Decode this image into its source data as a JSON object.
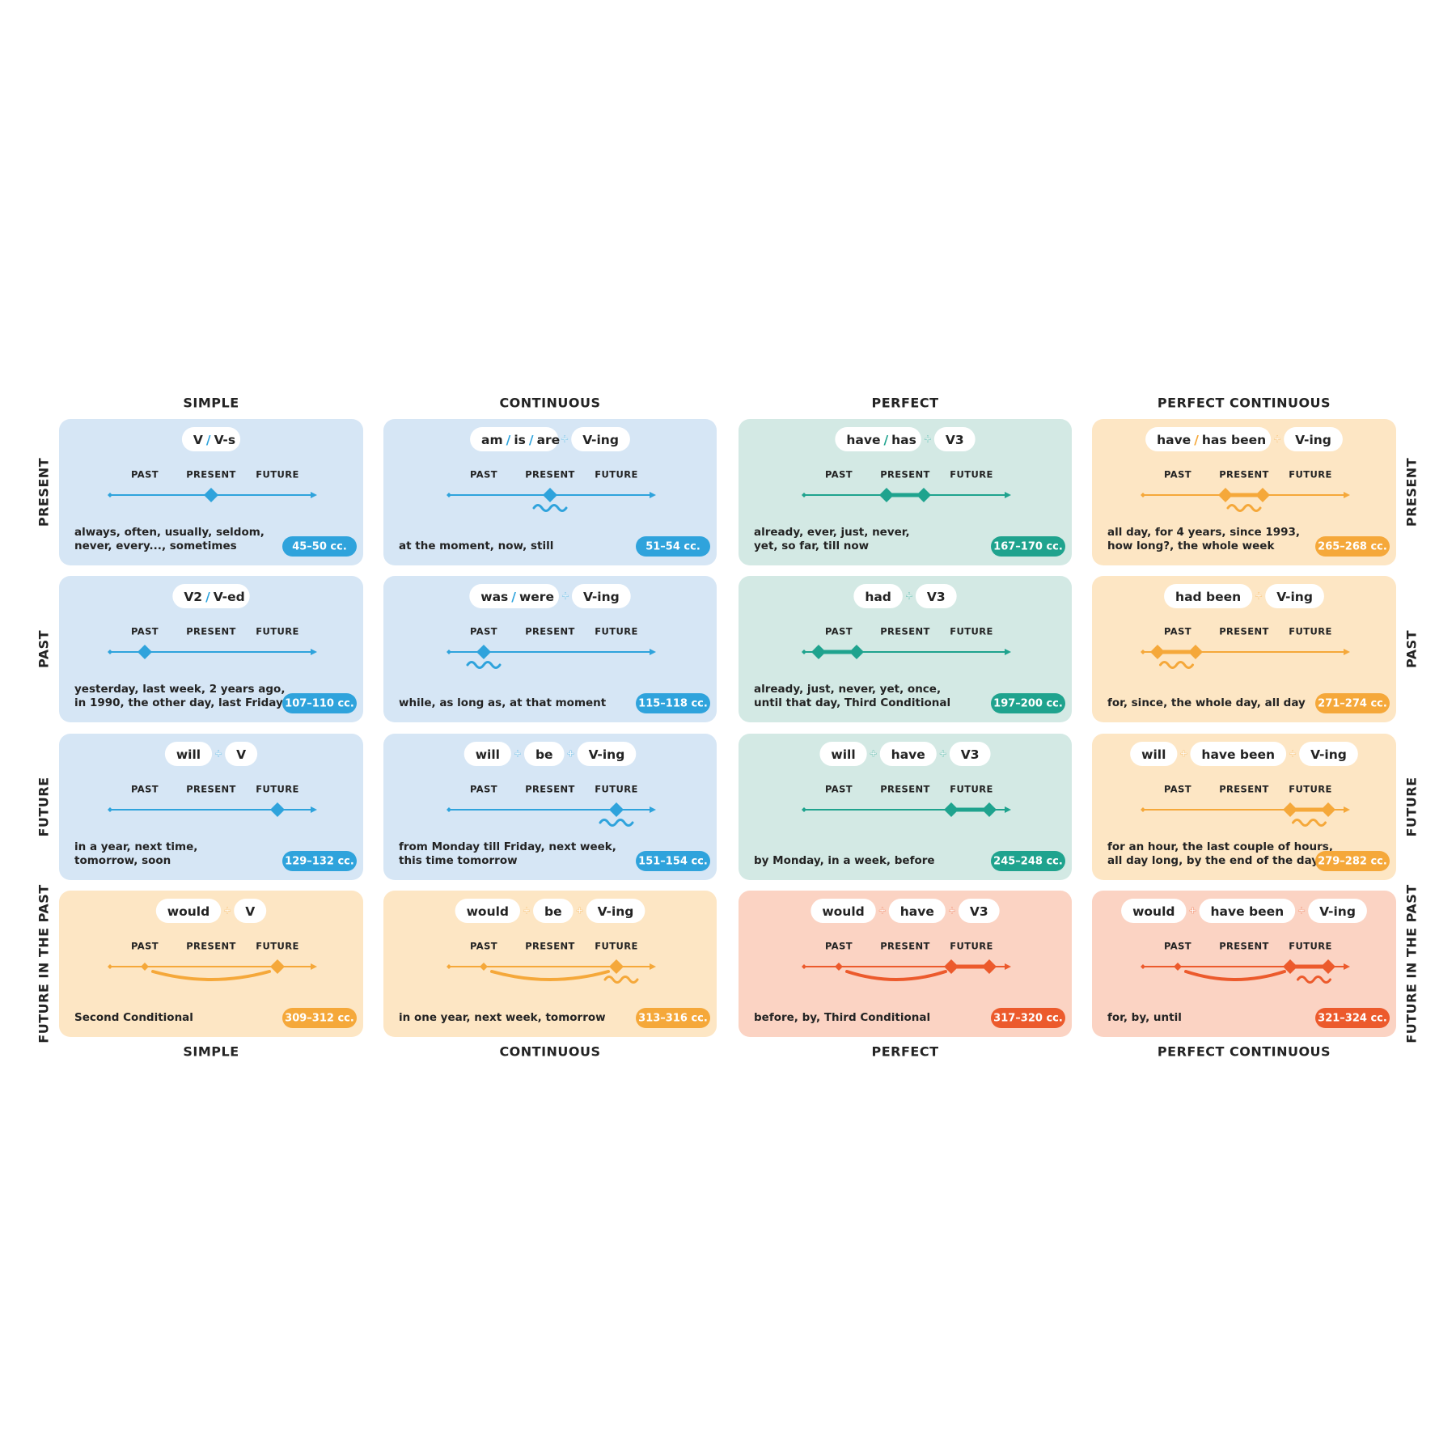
{
  "columns": [
    "SIMPLE",
    "CONTINUOUS",
    "PERFECT",
    "PERFECT CONTINUOUS"
  ],
  "rows": [
    "PRESENT",
    "PAST",
    "FUTURE",
    "FUTURE IN THE PAST"
  ],
  "timeline": [
    "PAST",
    "PRESENT",
    "FUTURE"
  ],
  "separator": "/",
  "joiner": "+",
  "cards": [
    [
      {
        "formula": [
          [
            "V",
            "V-s"
          ]
        ],
        "usage": [
          "always, often, usually, seldom,",
          "never, every..., sometimes"
        ],
        "pages": "45–50 cc."
      },
      {
        "formula": [
          [
            "am",
            "is",
            "are"
          ],
          [
            "V-ing"
          ]
        ],
        "usage": [
          "at the moment, now, still"
        ],
        "pages": "51–54 cc."
      },
      {
        "formula": [
          [
            "have",
            "has"
          ],
          [
            "V3"
          ]
        ],
        "usage": [
          "already, ever, just, never,",
          "yet, so far, till now"
        ],
        "pages": "167–170 cc."
      },
      {
        "formula": [
          [
            "have",
            "has been"
          ],
          [
            "V-ing"
          ]
        ],
        "usage": [
          "all day, for 4 years, since 1993,",
          "how long?, the whole week"
        ],
        "pages": "265–268 cc."
      }
    ],
    [
      {
        "formula": [
          [
            "V2",
            "V-ed"
          ]
        ],
        "usage": [
          "yesterday, last week, 2 years ago,",
          "in 1990, the other day, last Friday"
        ],
        "pages": "107–110 cc."
      },
      {
        "formula": [
          [
            "was",
            "were"
          ],
          [
            "V-ing"
          ]
        ],
        "usage": [
          "while, as long as, at that moment"
        ],
        "pages": "115–118 cc."
      },
      {
        "formula": [
          [
            "had"
          ],
          [
            "V3"
          ]
        ],
        "usage": [
          "already, just, never, yet, once,",
          "until that day, Third Conditional"
        ],
        "pages": "197–200 cc."
      },
      {
        "formula": [
          [
            "had been"
          ],
          [
            "V-ing"
          ]
        ],
        "usage": [
          "for, since, the whole day, all day"
        ],
        "pages": "271–274 cc."
      }
    ],
    [
      {
        "formula": [
          [
            "will"
          ],
          [
            "V"
          ]
        ],
        "usage": [
          "in a year, next time,",
          "tomorrow, soon"
        ],
        "pages": "129–132 cc."
      },
      {
        "formula": [
          [
            "will"
          ],
          [
            "be"
          ],
          [
            "V-ing"
          ]
        ],
        "usage": [
          "from Monday till Friday, next week,",
          "this time tomorrow"
        ],
        "pages": "151–154 cc."
      },
      {
        "formula": [
          [
            "will"
          ],
          [
            "have"
          ],
          [
            "V3"
          ]
        ],
        "usage": [
          "by Monday, in a week, before"
        ],
        "pages": "245–248 cc."
      },
      {
        "formula": [
          [
            "will"
          ],
          [
            "have been"
          ],
          [
            "V-ing"
          ]
        ],
        "usage": [
          "for an hour, the last couple of hours,",
          "all day long, by the end of the day"
        ],
        "pages": "279–282 cc."
      }
    ],
    [
      {
        "formula": [
          [
            "would"
          ],
          [
            "V"
          ]
        ],
        "usage": [
          "Second Conditional"
        ],
        "pages": "309–312 cc."
      },
      {
        "formula": [
          [
            "would"
          ],
          [
            "be"
          ],
          [
            "V-ing"
          ]
        ],
        "usage": [
          "in one year, next week, tomorrow"
        ],
        "pages": "313–316 cc."
      },
      {
        "formula": [
          [
            "would"
          ],
          [
            "have"
          ],
          [
            "V3"
          ]
        ],
        "usage": [
          "before, by, Third Conditional"
        ],
        "pages": "317–320 cc."
      },
      {
        "formula": [
          [
            "would"
          ],
          [
            "have been"
          ],
          [
            "V-ing"
          ]
        ],
        "usage": [
          "for, by, until"
        ],
        "pages": "321–324 cc."
      }
    ]
  ]
}
